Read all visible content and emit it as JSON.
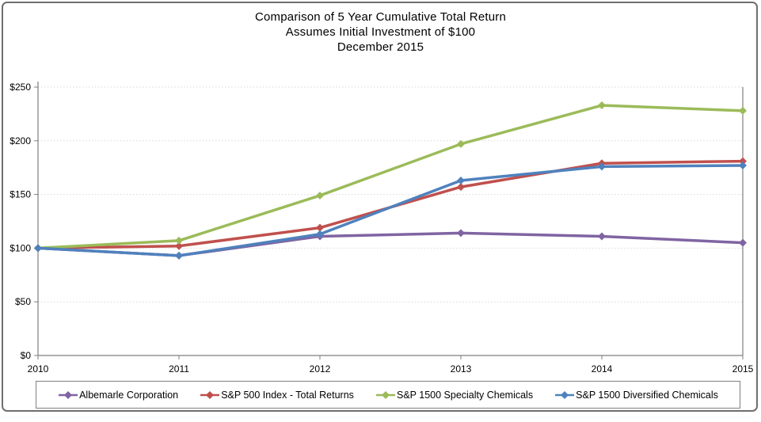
{
  "title": {
    "line1": "Comparison of 5 Year Cumulative Total Return",
    "line2": "Assumes Initial Investment of $100",
    "line3": "December 2015"
  },
  "chart_data": {
    "type": "line",
    "title": "Comparison of 5 Year Cumulative Total Return",
    "subtitle": "Assumes Initial Investment of $100",
    "date_label": "December 2015",
    "categories": [
      "2010",
      "2011",
      "2012",
      "2013",
      "2014",
      "2015"
    ],
    "series": [
      {
        "name": "Albemarle Corporation",
        "color": "#8064A2",
        "values": [
          100,
          93,
          111,
          114,
          111,
          105
        ]
      },
      {
        "name": "S&P 500 Index - Total Returns",
        "color": "#C0504D",
        "values": [
          100,
          102,
          119,
          157,
          179,
          181
        ]
      },
      {
        "name": "S&P 1500 Specialty Chemicals",
        "color": "#9BBB59",
        "values": [
          100,
          107,
          149,
          197,
          233,
          228
        ]
      },
      {
        "name": "S&P 1500 Diversified Chemicals",
        "color": "#4F81BD",
        "values": [
          100,
          93,
          113,
          163,
          176,
          177
        ]
      }
    ],
    "xlabel": "",
    "ylabel": "",
    "ylim": [
      0,
      250
    ],
    "yticks": [
      0,
      50,
      100,
      150,
      200,
      250
    ],
    "ytick_labels": [
      "$0",
      "$50",
      "$100",
      "$150",
      "$200",
      "$250"
    ],
    "grid": true,
    "legend_position": "bottom",
    "marker": "diamond",
    "axis_color": "#7f7f7f",
    "gridline_color": "#d9d9d9"
  }
}
